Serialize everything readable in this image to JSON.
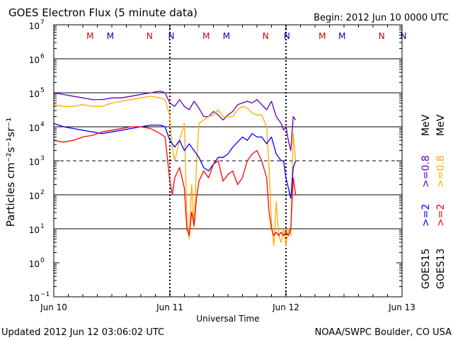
{
  "chart_data": {
    "type": "line",
    "title": "GOES Electron Flux (5 minute data)",
    "begin_label": "Begin: 2012 Jun 10 0000 UTC",
    "xlabel": "Universal Time",
    "ylabel": "Particles cm⁻²s⁻¹sr⁻¹",
    "footer_left": "Updated 2012 Jun 12 03:06:02 UTC",
    "footer_right": "NOAA/SWPC Boulder, CO USA",
    "xlim": [
      0,
      72
    ],
    "x_unit": "hours since 2012 Jun 10 00:00 UTC",
    "ylim_log10": [
      -1,
      7
    ],
    "x_ticks": [
      {
        "x": 0,
        "label": "Jun 10"
      },
      {
        "x": 24,
        "label": "Jun 11"
      },
      {
        "x": 48,
        "label": "Jun 12"
      },
      {
        "x": 72,
        "label": "Jun 13"
      }
    ],
    "y_ticks": [
      {
        "exp": 7,
        "base": "10",
        "sup": "7"
      },
      {
        "exp": 6,
        "base": "10",
        "sup": "6"
      },
      {
        "exp": 5,
        "base": "10",
        "sup": "5"
      },
      {
        "exp": 4,
        "base": "10",
        "sup": "4"
      },
      {
        "exp": 3,
        "base": "10",
        "sup": "3"
      },
      {
        "exp": 2,
        "base": "10",
        "sup": "2"
      },
      {
        "exp": 1,
        "base": "10",
        "sup": "1"
      },
      {
        "exp": 0,
        "base": "10",
        "sup": "0"
      },
      {
        "exp": -1,
        "base": "10",
        "sup": "−1"
      }
    ],
    "grid": {
      "solid_exponents": [
        1,
        2,
        4,
        5,
        6
      ],
      "dashed_exponents": [
        3
      ]
    },
    "day_boundary_dotted_x": [
      24,
      48
    ],
    "markers": [
      {
        "x": 7.5,
        "label": "M",
        "color": "#d00000"
      },
      {
        "x": 11.7,
        "label": "M",
        "color": "#0000cc"
      },
      {
        "x": 19.8,
        "label": "N",
        "color": "#d00000"
      },
      {
        "x": 24.3,
        "label": "N",
        "color": "#0000cc"
      },
      {
        "x": 31.5,
        "label": "M",
        "color": "#d00000"
      },
      {
        "x": 35.7,
        "label": "M",
        "color": "#0000cc"
      },
      {
        "x": 43.8,
        "label": "N",
        "color": "#d00000"
      },
      {
        "x": 48.2,
        "label": "N",
        "color": "#0000cc"
      },
      {
        "x": 55.5,
        "label": "M",
        "color": "#d00000"
      },
      {
        "x": 59.6,
        "label": "M",
        "color": "#0000cc"
      },
      {
        "x": 67.8,
        "label": "N",
        "color": "#d00000"
      },
      {
        "x": 72.3,
        "label": "N",
        "color": "#0000cc"
      }
    ],
    "legend": {
      "goes15": {
        "sat": "GOES15",
        "lo": ">=2",
        "hi": ">=0.8",
        "unit": "MeV",
        "lo_color": "#0000ff",
        "hi_color": "#6600aa"
      },
      "goes13": {
        "sat": "GOES13",
        "lo": ">=2",
        "hi": ">=0.8",
        "unit": "MeV",
        "lo_color": "#ff0000",
        "hi_color": "#ffaa00"
      }
    },
    "series": [
      {
        "name": "GOES15 >=0.8 MeV",
        "color": "#6600aa",
        "x": [
          0,
          2,
          4,
          6,
          8,
          10,
          12,
          14,
          16,
          18,
          20,
          22,
          23,
          24,
          25,
          26,
          27,
          28,
          29,
          30,
          31,
          32,
          33,
          34,
          35,
          36,
          37,
          38,
          39,
          40,
          41,
          42,
          43,
          44,
          45,
          46,
          47,
          47.5,
          48,
          48.5,
          49,
          49.5,
          50
        ],
        "log10": [
          5.0,
          4.95,
          4.9,
          4.85,
          4.8,
          4.8,
          4.85,
          4.85,
          4.9,
          4.95,
          5.0,
          5.05,
          5.0,
          4.7,
          4.6,
          4.8,
          4.6,
          4.5,
          4.75,
          4.55,
          4.3,
          4.3,
          4.45,
          4.35,
          4.2,
          4.35,
          4.45,
          4.65,
          4.7,
          4.75,
          4.7,
          4.8,
          4.65,
          4.5,
          4.75,
          4.3,
          4.1,
          3.9,
          4.0,
          3.6,
          3.3,
          4.3,
          4.2
        ]
      },
      {
        "name": "GOES13 >=0.8 MeV",
        "color": "#ffaa00",
        "x": [
          0,
          2,
          4,
          6,
          8,
          10,
          12,
          14,
          16,
          18,
          20,
          22,
          23,
          24,
          24.5,
          25,
          26,
          27,
          27.5,
          28,
          28.5,
          29,
          29.5,
          30,
          31,
          32,
          33,
          34,
          35,
          36,
          37,
          38,
          39,
          40,
          41,
          42,
          43,
          44,
          44.5,
          45,
          45.5,
          46,
          46.5,
          47,
          47.5,
          48,
          48.5,
          49,
          49.5,
          50
        ],
        "log10": [
          4.65,
          4.6,
          4.6,
          4.65,
          4.6,
          4.6,
          4.7,
          4.75,
          4.8,
          4.85,
          4.9,
          4.85,
          4.8,
          4.3,
          3.4,
          3.0,
          3.6,
          4.1,
          1.5,
          0.7,
          2.3,
          1.0,
          2.9,
          4.1,
          4.2,
          4.3,
          4.35,
          4.5,
          4.3,
          4.3,
          4.3,
          4.5,
          4.6,
          4.55,
          4.4,
          4.35,
          4.35,
          4.0,
          2.8,
          1.2,
          0.5,
          1.8,
          0.8,
          0.6,
          1.0,
          0.5,
          1.0,
          0.8,
          3.8,
          3.0
        ]
      },
      {
        "name": "GOES15 >=2 MeV",
        "color": "#0000ff",
        "x": [
          0,
          2,
          4,
          6,
          8,
          10,
          12,
          14,
          16,
          18,
          20,
          22,
          23,
          24,
          25,
          26,
          27,
          28,
          29,
          30,
          31,
          32,
          33,
          34,
          35,
          36,
          37,
          38,
          39,
          40,
          41,
          42,
          43,
          44,
          45,
          46,
          47,
          47.5,
          48,
          48.5,
          49,
          49.5,
          50
        ],
        "log10": [
          4.1,
          4.0,
          3.95,
          3.9,
          3.85,
          3.8,
          3.85,
          3.9,
          3.95,
          4.0,
          4.05,
          4.05,
          4.0,
          3.6,
          3.4,
          3.6,
          3.3,
          3.5,
          3.3,
          3.1,
          2.8,
          2.7,
          2.9,
          3.1,
          3.1,
          3.2,
          3.4,
          3.55,
          3.7,
          3.6,
          3.8,
          3.7,
          3.7,
          3.5,
          3.7,
          3.2,
          3.0,
          3.0,
          2.5,
          2.2,
          1.9,
          2.8,
          3.0
        ]
      },
      {
        "name": "GOES13 >=2 MeV",
        "color": "#ff0000",
        "x": [
          0,
          2,
          4,
          6,
          8,
          10,
          12,
          14,
          16,
          18,
          20,
          22,
          23,
          24,
          24.5,
          25,
          26,
          27,
          27.5,
          28,
          28.5,
          29,
          29.5,
          30,
          31,
          32,
          33,
          34,
          35,
          36,
          37,
          38,
          39,
          40,
          41,
          42,
          43,
          44,
          44.5,
          45,
          45.5,
          46,
          46.5,
          47,
          47.5,
          48,
          48.5,
          49,
          49.5,
          50
        ],
        "log10": [
          3.6,
          3.55,
          3.6,
          3.7,
          3.75,
          3.85,
          3.9,
          3.95,
          4.0,
          4.0,
          3.95,
          3.8,
          3.7,
          2.4,
          2.0,
          2.5,
          2.8,
          2.2,
          1.0,
          0.8,
          1.5,
          1.1,
          1.9,
          2.4,
          2.7,
          2.5,
          2.9,
          3.0,
          2.4,
          2.6,
          2.7,
          2.3,
          2.5,
          3.0,
          3.2,
          3.3,
          3.0,
          2.5,
          1.5,
          1.0,
          0.8,
          0.9,
          0.8,
          0.9,
          0.8,
          0.9,
          0.8,
          1.0,
          2.5,
          2.0
        ]
      }
    ]
  }
}
